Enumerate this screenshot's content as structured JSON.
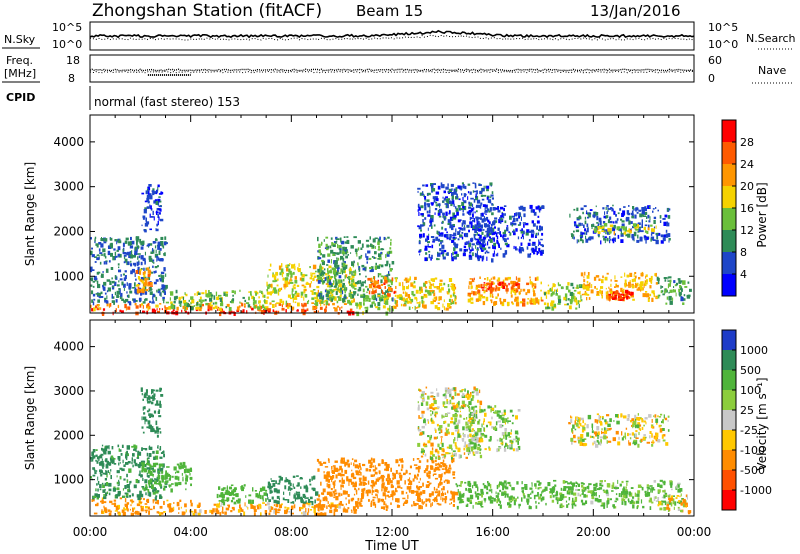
{
  "header": {
    "title": "Zhongshan Station (fitACF)",
    "beam": "Beam 15",
    "date": "13/Jan/2016"
  },
  "small_panels": {
    "nsky": {
      "label": "N.Sky",
      "ticks": [
        "10^5",
        "10^0"
      ],
      "right_label": "N.Search",
      "right_ticks": [
        "10^5",
        "10^0"
      ]
    },
    "freq": {
      "label_line1": "Freq.",
      "label_line2": "[MHz]",
      "ticks": [
        "18",
        "8"
      ],
      "right_label": "Nave",
      "right_ticks": [
        "60",
        "0"
      ]
    },
    "cpid": {
      "label": "CPID",
      "text": "normal (fast stereo) 153"
    }
  },
  "colorbars": {
    "power": {
      "label": "Power [dB]",
      "ticks": [
        "28",
        "24",
        "20",
        "16",
        "12",
        "8",
        "4"
      ],
      "colors": [
        "#ff0000",
        "#ff5a00",
        "#ff9600",
        "#f5d200",
        "#6abf3a",
        "#2e8b57",
        "#1e46c8",
        "#0000ff"
      ]
    },
    "velocity": {
      "label": "Velocity [m s⁻¹]",
      "ticks": [
        "1000",
        "500",
        "100",
        "25",
        "-25",
        "-100",
        "-500",
        "-1000"
      ],
      "colors": [
        "#1e3cc8",
        "#2e8b57",
        "#4fb43a",
        "#8ccd3c",
        "#c8c8c8",
        "#ffc800",
        "#ff8c00",
        "#ff5000",
        "#ff0000"
      ]
    }
  },
  "chart_data": [
    {
      "type": "heatmap",
      "panel": "power",
      "ylabel": "Slant Range [km]",
      "ylim": [
        180,
        4600
      ],
      "yticks": [
        1000,
        2000,
        3000,
        4000
      ],
      "xlim": [
        0,
        24
      ],
      "xticks": [
        "00:00",
        "04:00",
        "08:00",
        "12:00",
        "16:00",
        "20:00",
        "00:00"
      ],
      "cbar_range": [
        2,
        32
      ],
      "patches": [
        {
          "t": [
            0.0,
            10.5
          ],
          "r": [
            200,
            300
          ],
          "v": 29
        },
        {
          "t": [
            0.0,
            10.0
          ],
          "r": [
            300,
            420
          ],
          "v": 23
        },
        {
          "t": [
            0.0,
            3.0
          ],
          "r": [
            420,
            1900
          ],
          "v": 8
        },
        {
          "t": [
            1.8,
            2.4
          ],
          "r": [
            700,
            1200
          ],
          "v": 22
        },
        {
          "t": [
            2.0,
            2.8
          ],
          "r": [
            2000,
            3100
          ],
          "v": 6
        },
        {
          "t": [
            3.0,
            7.0
          ],
          "r": [
            300,
            700
          ],
          "v": 14
        },
        {
          "t": [
            7.0,
            10.5
          ],
          "r": [
            400,
            1300
          ],
          "v": 17
        },
        {
          "t": [
            9.0,
            12.0
          ],
          "r": [
            500,
            1900
          ],
          "v": 11
        },
        {
          "t": [
            10.5,
            12.0
          ],
          "r": [
            200,
            600
          ],
          "v": 15
        },
        {
          "t": [
            11.0,
            12.2
          ],
          "r": [
            600,
            1000
          ],
          "v": 25
        },
        {
          "t": [
            12.0,
            14.5
          ],
          "r": [
            300,
            1000
          ],
          "v": 18
        },
        {
          "t": [
            13.0,
            16.0
          ],
          "r": [
            1400,
            3100
          ],
          "v": 6
        },
        {
          "t": [
            15.0,
            18.0
          ],
          "r": [
            400,
            1000
          ],
          "v": 21
        },
        {
          "t": [
            15.5,
            17.0
          ],
          "r": [
            700,
            900
          ],
          "v": 27
        },
        {
          "t": [
            15.0,
            18.0
          ],
          "r": [
            1500,
            2600
          ],
          "v": 5
        },
        {
          "t": [
            18.0,
            19.5
          ],
          "r": [
            300,
            900
          ],
          "v": 15
        },
        {
          "t": [
            19.5,
            22.5
          ],
          "r": [
            500,
            1100
          ],
          "v": 20
        },
        {
          "t": [
            20.5,
            21.5
          ],
          "r": [
            500,
            700
          ],
          "v": 28
        },
        {
          "t": [
            19.0,
            23.0
          ],
          "r": [
            1800,
            2600
          ],
          "v": 7
        },
        {
          "t": [
            20.0,
            22.5
          ],
          "r": [
            2000,
            2200
          ],
          "v": 17
        },
        {
          "t": [
            22.5,
            23.8
          ],
          "r": [
            400,
            1000
          ],
          "v": 11
        }
      ]
    },
    {
      "type": "heatmap",
      "panel": "velocity",
      "ylabel": "Slant Range [km]",
      "ylim": [
        180,
        4600
      ],
      "yticks": [
        1000,
        2000,
        3000,
        4000
      ],
      "xlim": [
        0,
        24
      ],
      "xticks": [
        "00:00",
        "04:00",
        "08:00",
        "12:00",
        "16:00",
        "20:00",
        "00:00"
      ],
      "xlabel": "Time UT",
      "cbar_range": [
        -1200,
        1200
      ],
      "patches": [
        {
          "t": [
            0.0,
            4.0
          ],
          "r": [
            250,
            600
          ],
          "v": -200
        },
        {
          "t": [
            0.0,
            3.0
          ],
          "r": [
            600,
            1800
          ],
          "v": 600
        },
        {
          "t": [
            2.0,
            2.8
          ],
          "r": [
            2000,
            3100
          ],
          "v": 800
        },
        {
          "t": [
            4.0,
            10.0
          ],
          "r": [
            250,
            500
          ],
          "v": -150
        },
        {
          "t": [
            2.0,
            4.0
          ],
          "r": [
            800,
            1400
          ],
          "v": 300
        },
        {
          "t": [
            5.0,
            7.0
          ],
          "r": [
            500,
            900
          ],
          "v": 300
        },
        {
          "t": [
            7.0,
            9.0
          ],
          "r": [
            500,
            1100
          ],
          "v": 700
        },
        {
          "t": [
            9.0,
            12.0
          ],
          "r": [
            300,
            1500
          ],
          "v": -300
        },
        {
          "t": [
            12.0,
            14.5
          ],
          "r": [
            400,
            1500
          ],
          "v": -250
        },
        {
          "t": [
            13.0,
            15.5
          ],
          "r": [
            1500,
            3100
          ],
          "v": 5
        },
        {
          "t": [
            15.0,
            17.0
          ],
          "r": [
            1700,
            2700
          ],
          "v": 60
        },
        {
          "t": [
            14.5,
            18.5
          ],
          "r": [
            400,
            1000
          ],
          "v": 200
        },
        {
          "t": [
            18.5,
            23.5
          ],
          "r": [
            400,
            1000
          ],
          "v": 150
        },
        {
          "t": [
            19.0,
            23.0
          ],
          "r": [
            1800,
            2500
          ],
          "v": 0
        },
        {
          "t": [
            22.5,
            23.8
          ],
          "r": [
            300,
            700
          ],
          "v": -50
        }
      ]
    }
  ],
  "axis_labels": {
    "slant": "Slant Range [km]",
    "xlabel": "Time UT"
  }
}
